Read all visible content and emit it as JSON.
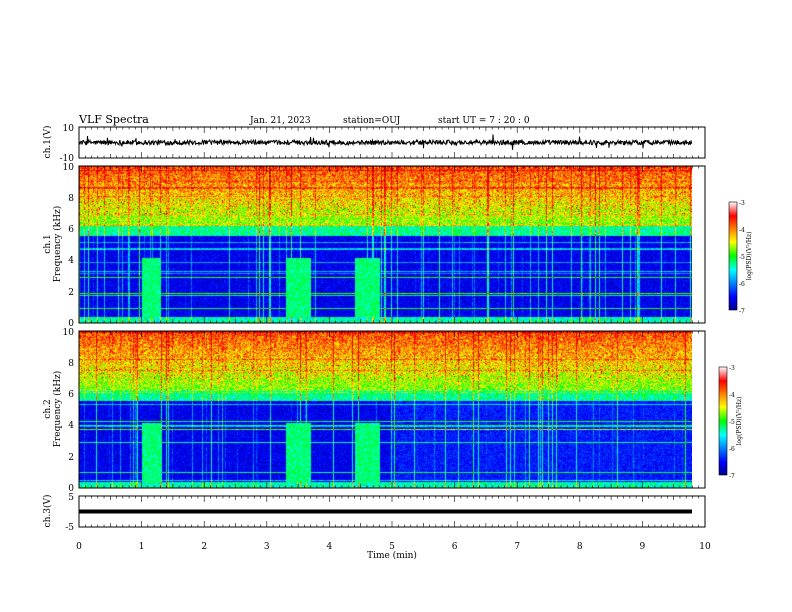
{
  "header": {
    "title": "VLF Spectra",
    "date": "Jan. 21, 2023",
    "station": "station=OUJ",
    "start": "start  UT  =   7 : 20 : 0"
  },
  "panels": {
    "ch1_wave": {
      "ylabel": "ch.1(V)",
      "yticks": [
        "10",
        "-10"
      ]
    },
    "ch1_spec": {
      "ylabel": "ch.1\nFrequency  (kHz)",
      "yticks": [
        "0",
        "2",
        "4",
        "6",
        "8",
        "10"
      ],
      "cb_label": "log(PSD)(V²/Hz)",
      "cb_ticks": [
        "-3",
        "-4",
        "-5",
        "-6",
        "-7"
      ]
    },
    "ch2_spec": {
      "ylabel": "ch.2\nFrequency  (kHz)",
      "yticks": [
        "0",
        "2",
        "4",
        "6",
        "8",
        "10"
      ],
      "cb_label": "log(PSD)(V²/Hz)",
      "cb_ticks": [
        "-3",
        "-4",
        "-5",
        "-6",
        "-7"
      ]
    },
    "ch3_wave": {
      "ylabel": "ch.3(V)",
      "yticks": [
        "5",
        "-5"
      ]
    }
  },
  "xaxis": {
    "label": "Time  (min)",
    "ticks": [
      "0",
      "1",
      "2",
      "3",
      "4",
      "5",
      "6",
      "7",
      "8",
      "9",
      "10"
    ]
  },
  "colors": {
    "low": "#00008f",
    "mid": "#00ff00",
    "high": "#c80000"
  },
  "chart_data": [
    {
      "type": "line",
      "name": "ch.1 waveform",
      "ylabel": "ch.1(V)",
      "xlim": [
        0,
        10
      ],
      "ylim": [
        -10,
        10
      ],
      "baseline": 0,
      "noise_amplitude": 1.5
    },
    {
      "type": "heatmap",
      "ylabel": "ch.1 Frequency (kHz)",
      "xlim": [
        0,
        9.8
      ],
      "ylim": [
        0,
        10
      ],
      "colorbar": {
        "label": "log(PSD)(V²/Hz)",
        "range": [
          -7,
          -3
        ]
      },
      "broadband_bursts_min": [
        [
          1.0,
          1.3
        ],
        [
          3.3,
          3.7
        ],
        [
          4.4,
          4.8
        ]
      ]
    },
    {
      "type": "heatmap",
      "ylabel": "ch.2 Frequency (kHz)",
      "xlim": [
        0,
        9.8
      ],
      "ylim": [
        0,
        10
      ],
      "colorbar": {
        "label": "log(PSD)(V²/Hz)",
        "range": [
          -7,
          -3
        ]
      },
      "broadband_bursts_min": [
        [
          1.0,
          1.3
        ],
        [
          3.3,
          3.7
        ],
        [
          4.4,
          4.8
        ]
      ]
    },
    {
      "type": "line",
      "name": "ch.3 waveform",
      "ylabel": "ch.3(V)",
      "xlim": [
        0,
        10
      ],
      "ylim": [
        -5,
        5
      ],
      "baseline": 0
    }
  ]
}
